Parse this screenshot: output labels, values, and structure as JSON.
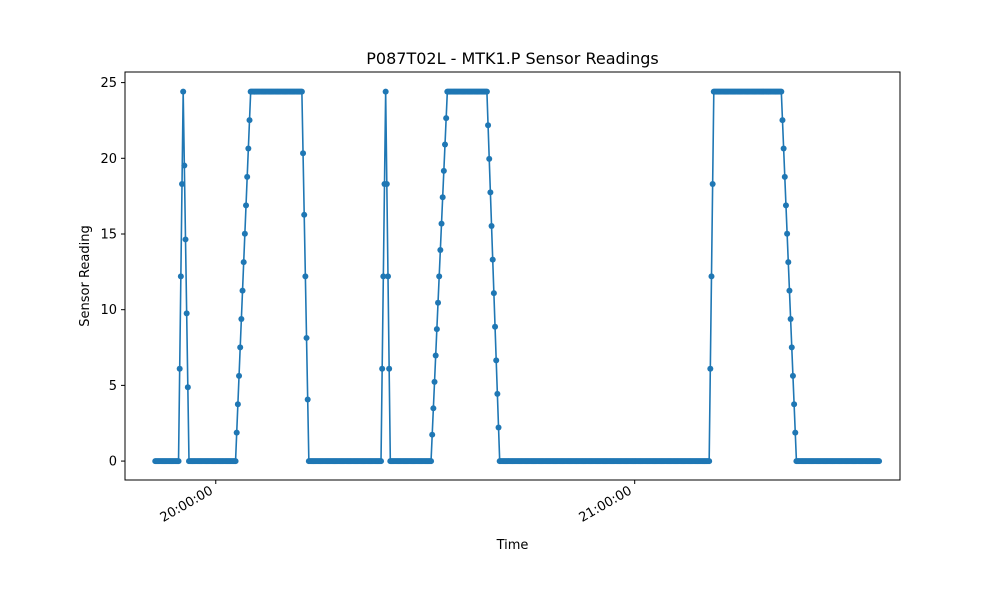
{
  "chart_data": {
    "type": "line",
    "title": "P087T02L - MTK1.P Sensor Readings",
    "xlabel": "Time",
    "ylabel": "Sensor Reading",
    "xlim": [
      "19:47:00",
      "21:38:00"
    ],
    "ylim": [
      -1.25,
      25.7
    ],
    "x_ticks": [
      "20:00:00",
      "21:00:00"
    ],
    "y_ticks": [
      0,
      5,
      10,
      15,
      20,
      25
    ],
    "grid": false,
    "legend": "none",
    "series": [
      {
        "color": "#1f77b4",
        "marker": "circle",
        "points": [
          [
            "19:51:20",
            0
          ],
          [
            "19:54:40",
            0
          ],
          [
            "19:55:20",
            24.4
          ],
          [
            "19:56:10",
            0
          ],
          [
            "20:00:00",
            0
          ],
          [
            "20:02:50",
            0
          ],
          [
            "20:05:00",
            24.4
          ],
          [
            "20:12:20",
            24.4
          ],
          [
            "20:13:20",
            0
          ],
          [
            "20:23:40",
            0
          ],
          [
            "20:24:20",
            24.4
          ],
          [
            "20:25:00",
            0
          ],
          [
            "20:30:00",
            0
          ],
          [
            "20:30:50",
            0
          ],
          [
            "20:33:10",
            24.4
          ],
          [
            "20:38:50",
            24.4
          ],
          [
            "20:40:40",
            0
          ],
          [
            "21:10:40",
            0
          ],
          [
            "21:11:20",
            24.4
          ],
          [
            "21:21:00",
            24.4
          ],
          [
            "21:23:10",
            0
          ],
          [
            "21:35:00",
            0
          ]
        ]
      }
    ]
  }
}
